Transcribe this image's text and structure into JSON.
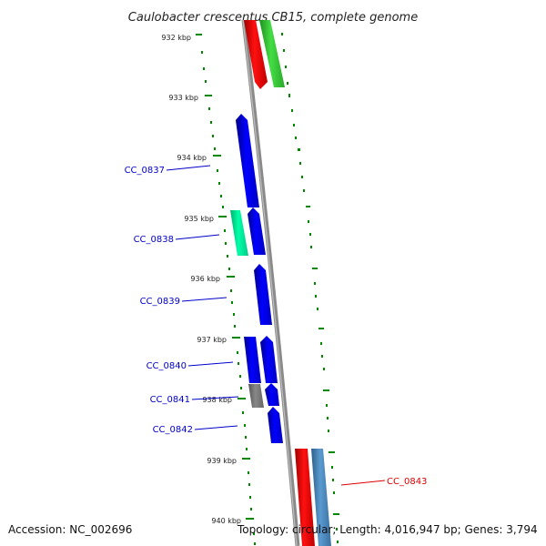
{
  "title": "Caulobacter crescentus CB15, complete genome",
  "footer": {
    "accession": "Accession: NC_002696",
    "summary": "Topology: circular; Length: 4,016,947 bp; Genes: 3,794"
  },
  "ticks": [
    "932 kbp",
    "933 kbp",
    "934 kbp",
    "935 kbp",
    "936 kbp",
    "937 kbp",
    "938 kbp",
    "939 kbp",
    "940 kbp"
  ],
  "gene_labels": [
    {
      "id": "cc-0837",
      "text": "CC_0837",
      "color": "#0000cc"
    },
    {
      "id": "cc-0838",
      "text": "CC_0838",
      "color": "#0000cc"
    },
    {
      "id": "cc-0839",
      "text": "CC_0839",
      "color": "#0000cc"
    },
    {
      "id": "cc-0840",
      "text": "CC_0840",
      "color": "#0000cc"
    },
    {
      "id": "cc-0841",
      "text": "CC_0841",
      "color": "#0000cc"
    },
    {
      "id": "cc-0842",
      "text": "CC_0842",
      "color": "#0000cc"
    },
    {
      "id": "cc-0843",
      "text": "CC_0843",
      "color": "#dd0000"
    }
  ],
  "colors": {
    "cds_blue": "#0000ee",
    "rrna_red": "#ee0000",
    "trna_green": "#33cc33",
    "misc_teal": "#00ee99",
    "pseudo_gray": "#777777",
    "steel_blue": "#4682b4",
    "backbone": "#888888",
    "ticks": "#008800"
  }
}
